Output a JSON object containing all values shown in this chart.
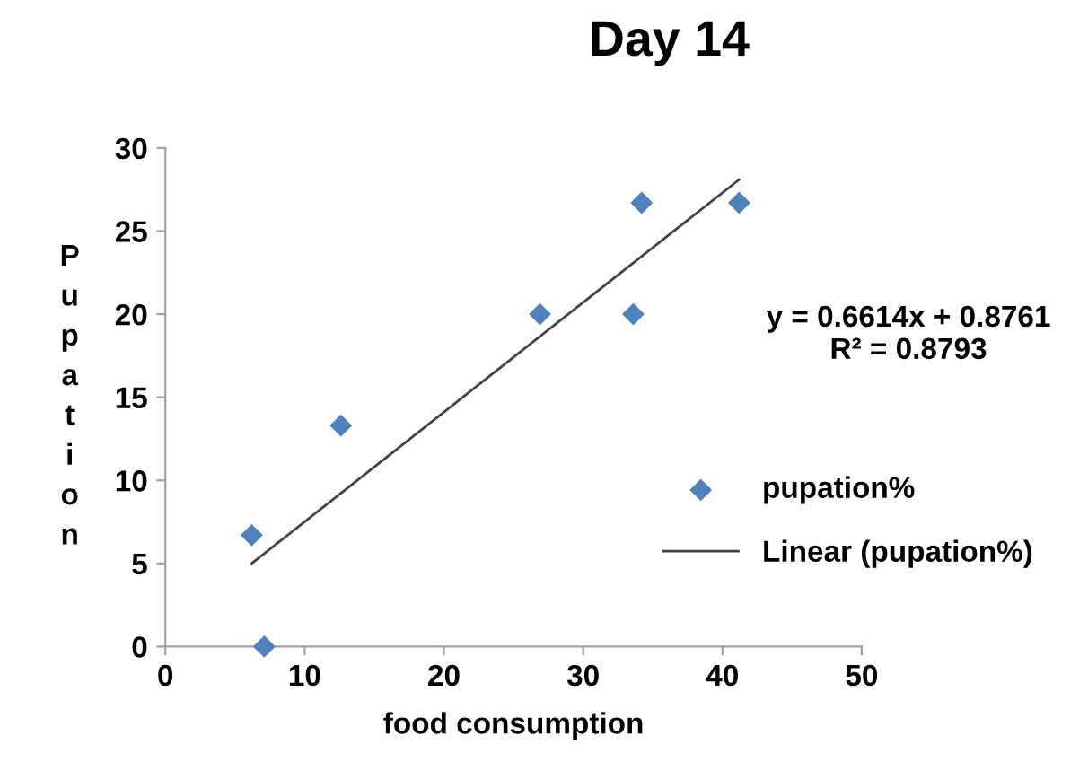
{
  "chart_data": {
    "type": "scatter",
    "title": "Day 14",
    "xlabel": "food consumption",
    "ylabel": "Pupation",
    "xlim": [
      0,
      50
    ],
    "xticks": [
      0,
      10,
      20,
      30,
      40,
      50
    ],
    "ylim": [
      0,
      30
    ],
    "yticks": [
      0,
      5,
      10,
      15,
      20,
      25,
      30
    ],
    "grid": false,
    "legend": "right",
    "annotations": [
      "y = 0.6614x + 0.8761\nR² = 0.8793"
    ],
    "series": [
      {
        "name": "pupation%",
        "marker": "diamond",
        "color": "#4f81bd",
        "x": [
          6.2,
          7.1,
          12.6,
          26.9,
          33.6,
          34.2,
          41.2
        ],
        "values": [
          6.7,
          0,
          13.3,
          20,
          20,
          26.7,
          26.7
        ]
      },
      {
        "name": "Linear (pupation%)",
        "type": "line",
        "color": "#404040",
        "line_style": "solid",
        "x": [
          6.2,
          41.2
        ],
        "values": [
          5.0,
          28.1
        ]
      }
    ]
  }
}
